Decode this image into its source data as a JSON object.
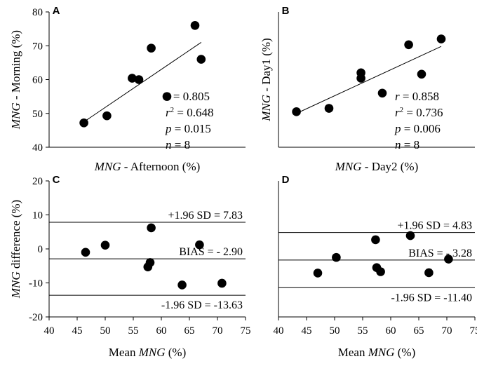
{
  "chart_data": [
    {
      "panel": "A",
      "type": "scatter",
      "xlabel_italic": "MNG",
      "xlabel_rest": " - Afternoon (%)",
      "ylabel_italic": "MNG",
      "ylabel_rest": " - Morning (%)",
      "xlim": [
        40,
        75
      ],
      "ylim": [
        40,
        80
      ],
      "yticks": [
        40,
        50,
        60,
        70,
        80
      ],
      "points": [
        {
          "x": 46.2,
          "y": 47.2
        },
        {
          "x": 50.3,
          "y": 49.3
        },
        {
          "x": 54.8,
          "y": 60.4
        },
        {
          "x": 56.0,
          "y": 60.0
        },
        {
          "x": 58.2,
          "y": 69.3
        },
        {
          "x": 61.0,
          "y": 55.0
        },
        {
          "x": 66.0,
          "y": 76.0
        },
        {
          "x": 67.1,
          "y": 66.0
        }
      ],
      "fit": {
        "x1": 46.2,
        "y1": 47.5,
        "x2": 67.1,
        "y2": 71.0
      },
      "stats": {
        "r": "0.805",
        "r2": "0.648",
        "p": "0.015",
        "n": "8"
      }
    },
    {
      "panel": "B",
      "type": "scatter",
      "xlabel_italic": "MNG",
      "xlabel_rest": " - Day2 (%)",
      "ylabel_italic": "MNG",
      "ylabel_rest": " - Day1 (%)",
      "xlim": [
        40,
        75
      ],
      "ylim": [
        40,
        80
      ],
      "points": [
        {
          "x": 43.2,
          "y": 50.5
        },
        {
          "x": 49.0,
          "y": 51.5
        },
        {
          "x": 54.7,
          "y": 62.0
        },
        {
          "x": 54.7,
          "y": 60.4
        },
        {
          "x": 58.5,
          "y": 56.0
        },
        {
          "x": 63.2,
          "y": 70.3
        },
        {
          "x": 65.5,
          "y": 61.6
        },
        {
          "x": 69.0,
          "y": 72.0
        }
      ],
      "fit": {
        "x1": 43.2,
        "y1": 50.0,
        "x2": 69.0,
        "y2": 69.8
      },
      "stats": {
        "r": "0.858",
        "r2": "0.736",
        "p": "0.006",
        "n": "8"
      }
    },
    {
      "panel": "C",
      "type": "scatter",
      "xlabel_prefix": "Mean ",
      "xlabel_italic": "MNG",
      "xlabel_rest": " (%)",
      "ylabel_italic": "MNG",
      "ylabel_rest": " difference (%)",
      "xlim": [
        40,
        75
      ],
      "ylim": [
        -20,
        20
      ],
      "xticks": [
        40,
        45,
        50,
        55,
        60,
        65,
        70,
        75
      ],
      "yticks": [
        -20,
        -10,
        0,
        10,
        20
      ],
      "points": [
        {
          "x": 46.5,
          "y": -1.0
        },
        {
          "x": 50.0,
          "y": 1.1
        },
        {
          "x": 57.6,
          "y": -5.3
        },
        {
          "x": 58.0,
          "y": -4.0
        },
        {
          "x": 58.2,
          "y": 6.2
        },
        {
          "x": 63.7,
          "y": -10.6
        },
        {
          "x": 66.8,
          "y": 1.2
        },
        {
          "x": 70.8,
          "y": -10.1
        }
      ],
      "upper_loa": 7.83,
      "bias": -2.9,
      "lower_loa": -13.63,
      "upper_label": "+1.96 SD = 7.83",
      "bias_label": "BIAS = - 2.90",
      "lower_label": "-1.96 SD = -13.63"
    },
    {
      "panel": "D",
      "type": "scatter",
      "xlabel_prefix": "Mean ",
      "xlabel_italic": "MNG",
      "xlabel_rest": " (%)",
      "xlim": [
        40,
        75
      ],
      "ylim": [
        -20,
        20
      ],
      "xticks": [
        40,
        45,
        50,
        55,
        60,
        65,
        70,
        75
      ],
      "points": [
        {
          "x": 47.0,
          "y": -7.1
        },
        {
          "x": 50.3,
          "y": -2.5
        },
        {
          "x": 57.3,
          "y": 2.7
        },
        {
          "x": 57.5,
          "y": -5.5
        },
        {
          "x": 58.2,
          "y": -6.7
        },
        {
          "x": 63.5,
          "y": 3.9
        },
        {
          "x": 66.8,
          "y": -7.0
        },
        {
          "x": 70.3,
          "y": -3.0
        }
      ],
      "upper_loa": 4.83,
      "bias": -3.28,
      "lower_loa": -11.4,
      "upper_label": "+1.96 SD = 4.83",
      "bias_label": "BIAS = - 3.28",
      "lower_label": "-1.96 SD = -11.40"
    }
  ]
}
